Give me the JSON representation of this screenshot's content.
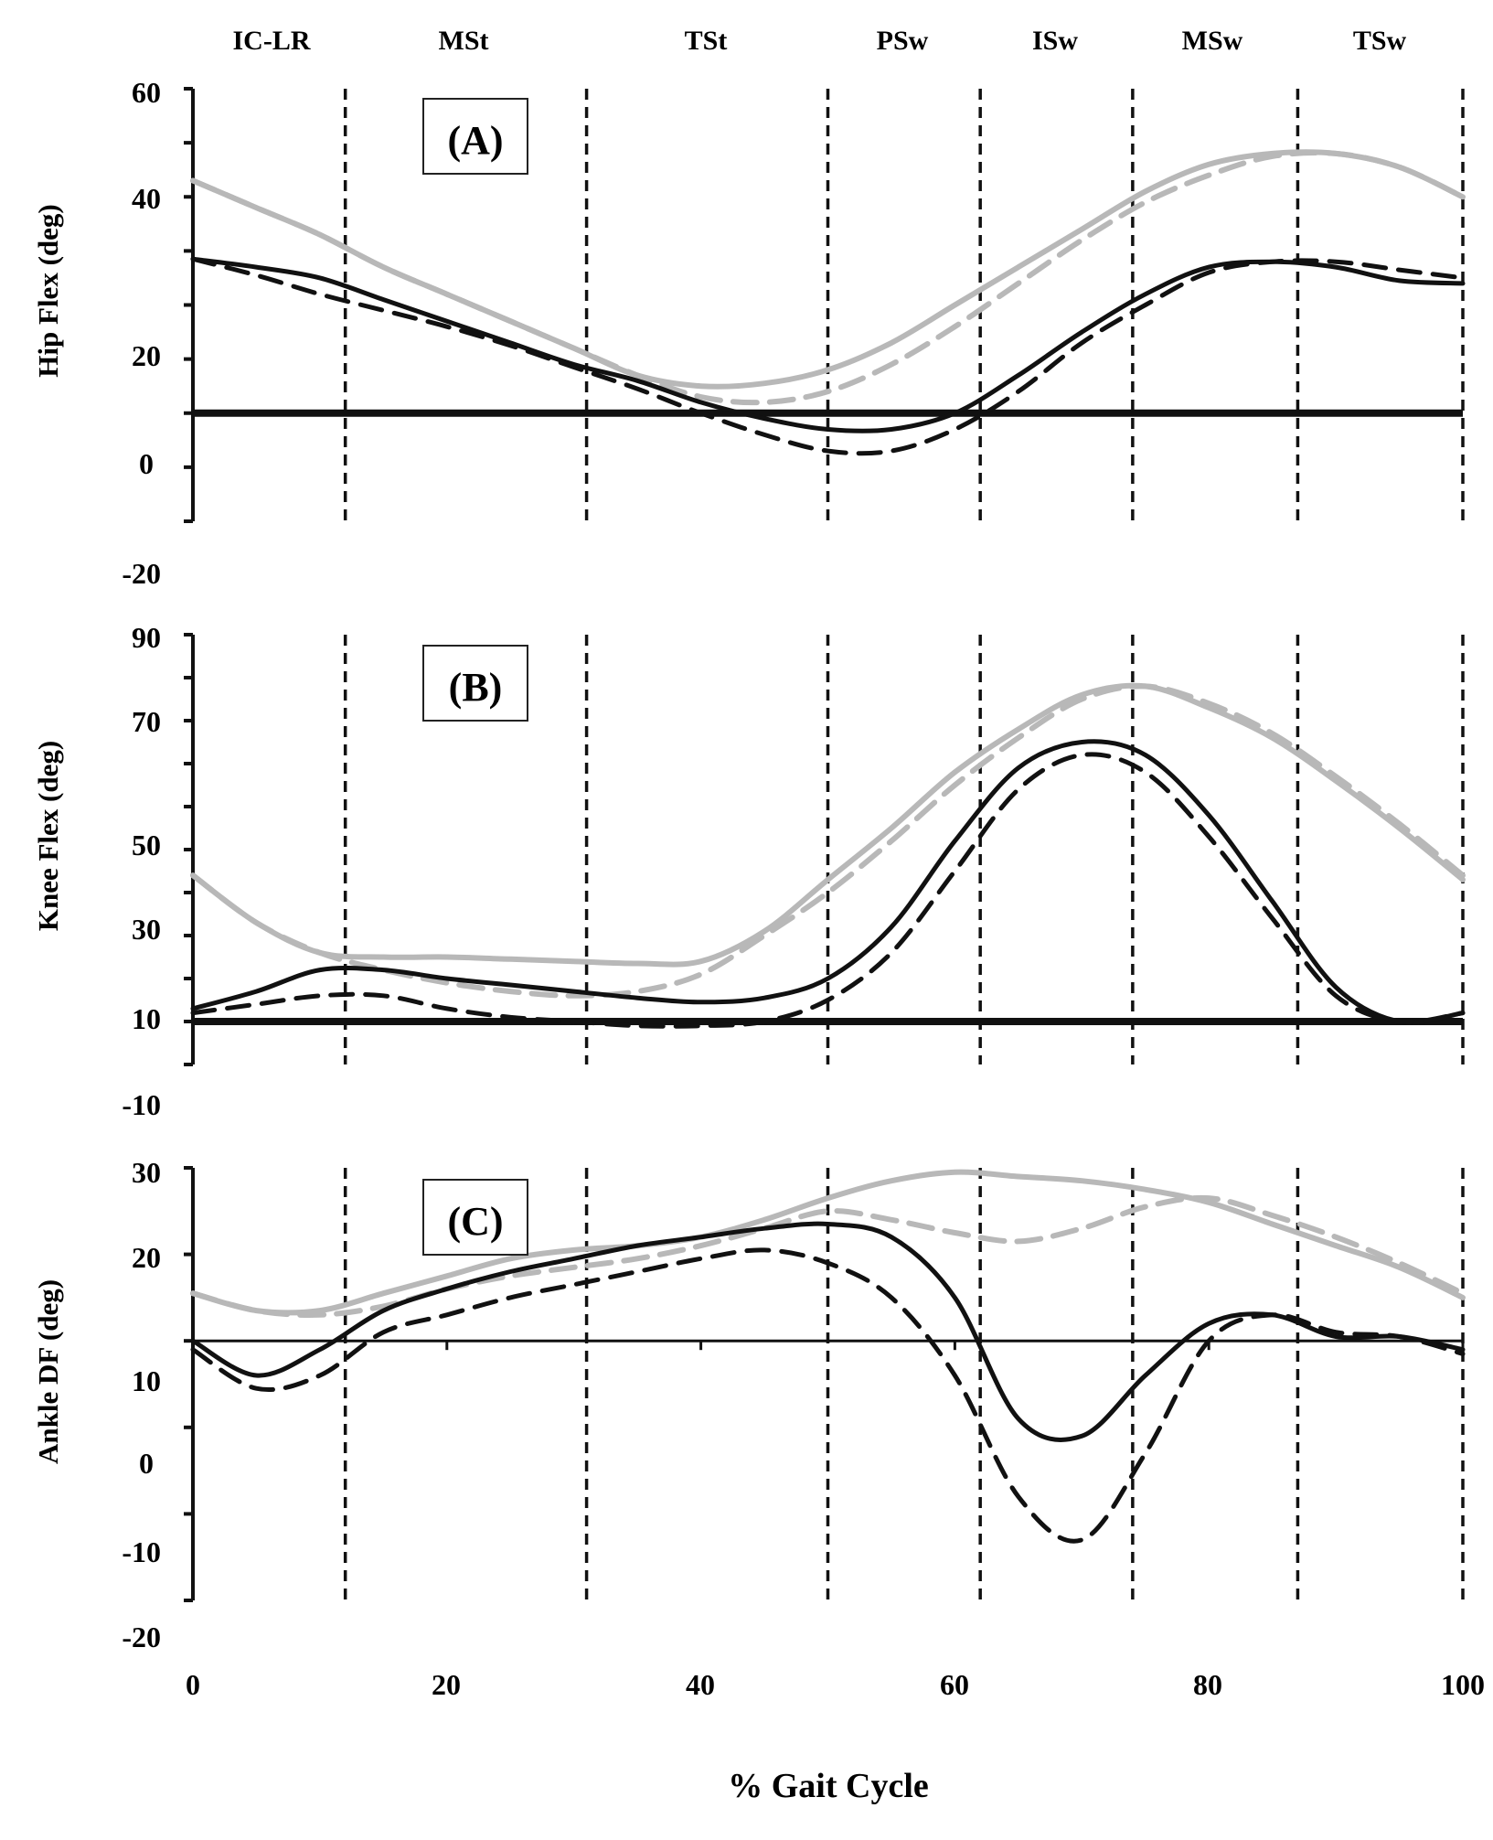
{
  "phases": [
    "IC-LR",
    "MSt",
    "TSt",
    "PSw",
    "ISw",
    "MSw",
    "TSw"
  ],
  "phase_boundaries": [
    12,
    31,
    50,
    62,
    74,
    87,
    100
  ],
  "x_axis": {
    "label": "% Gait Cycle",
    "ticks": [
      "0",
      "20",
      "40",
      "60",
      "80",
      "100"
    ],
    "range": [
      0,
      100
    ]
  },
  "colors": {
    "black": "#111111",
    "gray": "#b8b8b8"
  },
  "chart_data": [
    {
      "type": "line",
      "panel_label": "(A)",
      "ylabel": "Hip Flex (deg)",
      "yticks": [
        "60",
        "40",
        "20",
        "0",
        "-20"
      ],
      "ylim": [
        -20,
        60
      ],
      "zero_line": 0,
      "x": [
        0,
        5,
        10,
        15,
        20,
        25,
        30,
        35,
        40,
        45,
        50,
        55,
        60,
        65,
        70,
        75,
        80,
        85,
        90,
        95,
        100
      ],
      "series": [
        {
          "style": "gray-solid",
          "values": [
            43,
            38,
            33,
            27,
            22,
            17,
            12,
            7,
            5,
            5.5,
            8,
            13,
            20,
            27,
            34,
            41,
            46,
            48,
            48,
            45.5,
            40
          ]
        },
        {
          "style": "gray-dashed",
          "values": [
            43,
            38,
            33,
            27,
            22,
            17,
            12,
            7,
            3,
            2,
            4,
            9,
            16,
            24,
            32,
            39,
            44,
            47.5,
            48,
            45.5,
            40
          ]
        },
        {
          "style": "black-solid",
          "values": [
            28.5,
            27,
            25,
            21,
            17,
            13,
            9,
            6,
            2,
            -1,
            -3,
            -3,
            0,
            7,
            15,
            22,
            27,
            28,
            27,
            24.5,
            24
          ]
        },
        {
          "style": "black-dashed",
          "values": [
            28.5,
            25.5,
            22,
            19,
            16,
            12.5,
            8.5,
            4.5,
            0,
            -4,
            -7,
            -7,
            -3,
            4,
            13,
            20,
            26,
            28,
            28,
            26.5,
            25
          ]
        }
      ]
    },
    {
      "type": "line",
      "panel_label": "(B)",
      "ylabel": "Knee Flex (deg)",
      "yticks": [
        "90",
        "70",
        "50",
        "30",
        "10",
        "-10"
      ],
      "ylim": [
        -10,
        90
      ],
      "zero_line": 0,
      "x": [
        0,
        5,
        10,
        15,
        20,
        25,
        30,
        35,
        40,
        45,
        50,
        55,
        60,
        65,
        70,
        75,
        80,
        85,
        90,
        95,
        100
      ],
      "series": [
        {
          "style": "gray-solid",
          "values": [
            34,
            23,
            16,
            15,
            15,
            14.5,
            14,
            13.5,
            14,
            21,
            33,
            45,
            58,
            68,
            76,
            78,
            73,
            66,
            56,
            45,
            33
          ]
        },
        {
          "style": "gray-dashed",
          "values": [
            34,
            23,
            16,
            12,
            9,
            7,
            6,
            7,
            11,
            20,
            30,
            42,
            55,
            66,
            75,
            78,
            74,
            67,
            57,
            46,
            34
          ]
        },
        {
          "style": "black-solid",
          "values": [
            3,
            7,
            12,
            12,
            10,
            8.5,
            7,
            5.5,
            4.5,
            5.5,
            10,
            22,
            42,
            59,
            65,
            62,
            48,
            28,
            8,
            0,
            2
          ]
        },
        {
          "style": "black-dashed",
          "values": [
            2,
            4,
            6,
            6,
            3,
            1,
            0,
            -1,
            -1,
            0,
            5,
            16,
            35,
            54,
            62,
            58,
            43,
            24,
            6,
            0,
            2
          ]
        }
      ]
    },
    {
      "type": "line",
      "panel_label": "(C)",
      "ylabel": "Ankle DF (deg)",
      "yticks": [
        "30",
        "20",
        "10",
        "0",
        "-10",
        "-20"
      ],
      "ylim": [
        -20,
        30
      ],
      "zero_line": 10,
      "x": [
        0,
        5,
        10,
        15,
        20,
        25,
        30,
        35,
        40,
        45,
        50,
        55,
        60,
        65,
        70,
        75,
        80,
        85,
        90,
        95,
        100
      ],
      "series": [
        {
          "style": "gray-solid",
          "values": [
            15.5,
            13.5,
            13.5,
            15.5,
            17.5,
            19.5,
            20.5,
            21,
            22,
            24,
            26.5,
            28.5,
            29.5,
            29,
            28.5,
            27.5,
            26,
            23.5,
            21,
            18.5,
            15
          ]
        },
        {
          "style": "gray-dashed",
          "values": [
            15.5,
            13.5,
            13,
            14,
            16,
            17.5,
            18.5,
            19.5,
            21,
            23,
            25,
            24,
            22.5,
            21.5,
            23,
            25.5,
            26.5,
            24.5,
            22,
            19,
            15.5
          ]
        },
        {
          "style": "black-solid",
          "values": [
            10,
            6,
            9,
            13.5,
            16,
            18,
            19.5,
            21,
            22,
            23,
            23.5,
            22,
            15,
            1,
            -1,
            6,
            12,
            13,
            10.5,
            10.5,
            9
          ]
        },
        {
          "style": "black-dashed",
          "values": [
            9,
            4.5,
            6,
            11,
            13,
            15,
            16.5,
            18,
            19.5,
            20.5,
            19,
            15,
            6,
            -8,
            -13,
            -3,
            10,
            13,
            11,
            10.5,
            8.5
          ]
        }
      ]
    }
  ]
}
